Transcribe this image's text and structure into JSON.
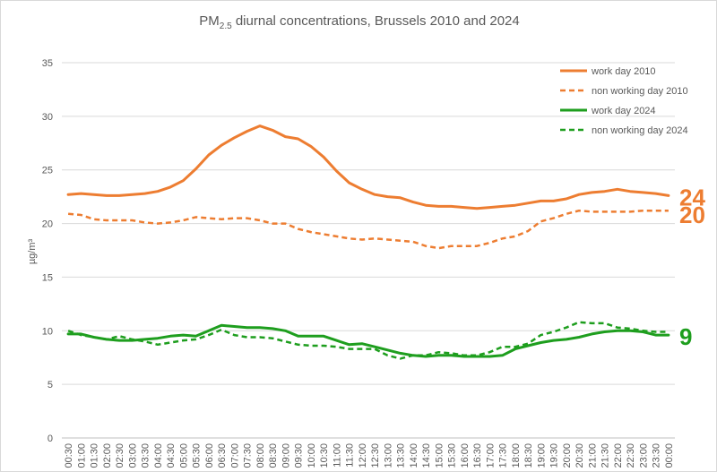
{
  "chart_data": {
    "type": "line",
    "title_main": "PM",
    "title_sub": "2.5",
    "title_rest": " diurnal concentrations, Brussels 2010 and 2024",
    "ylabel": "µg/m³",
    "ylim": [
      0,
      35
    ],
    "yticks": [
      0,
      5,
      10,
      15,
      20,
      25,
      30,
      35
    ],
    "grid": true,
    "legend_position": "top-right",
    "x": [
      "00:30",
      "01:00",
      "01:30",
      "02:00",
      "02:30",
      "03:00",
      "03:30",
      "04:00",
      "04:30",
      "05:00",
      "05:30",
      "06:00",
      "06:30",
      "07:00",
      "07:30",
      "08:00",
      "08:30",
      "09:00",
      "09:30",
      "10:00",
      "10:30",
      "11:00",
      "11:30",
      "12:00",
      "12:30",
      "13:00",
      "13:30",
      "14:00",
      "14:30",
      "15:00",
      "15:30",
      "16:00",
      "16:30",
      "17:00",
      "17:30",
      "18:00",
      "18:30",
      "19:00",
      "19:30",
      "20:00",
      "20:30",
      "21:00",
      "21:30",
      "22:00",
      "22:30",
      "23:00",
      "23:30",
      "00:00"
    ],
    "series": [
      {
        "name": "work day 2010",
        "color": "#ED7D31",
        "dash": false,
        "values": [
          22.7,
          22.8,
          22.7,
          22.6,
          22.6,
          22.7,
          22.8,
          23.0,
          23.4,
          24.0,
          25.1,
          26.4,
          27.3,
          28.0,
          28.6,
          29.1,
          28.7,
          28.1,
          27.9,
          27.2,
          26.2,
          24.9,
          23.8,
          23.2,
          22.7,
          22.5,
          22.4,
          22.0,
          21.7,
          21.6,
          21.6,
          21.5,
          21.4,
          21.5,
          21.6,
          21.7,
          21.9,
          22.1,
          22.1,
          22.3,
          22.7,
          22.9,
          23.0,
          23.2,
          23.0,
          22.9,
          22.8,
          22.6
        ]
      },
      {
        "name": "non working day 2010",
        "color": "#ED7D31",
        "dash": true,
        "values": [
          20.9,
          20.8,
          20.4,
          20.3,
          20.3,
          20.3,
          20.1,
          20.0,
          20.1,
          20.3,
          20.6,
          20.5,
          20.4,
          20.5,
          20.5,
          20.3,
          20.0,
          20.0,
          19.5,
          19.2,
          19.0,
          18.8,
          18.6,
          18.5,
          18.6,
          18.5,
          18.4,
          18.3,
          17.9,
          17.7,
          17.9,
          17.9,
          17.9,
          18.2,
          18.6,
          18.8,
          19.3,
          20.2,
          20.5,
          20.9,
          21.2,
          21.1,
          21.1,
          21.1,
          21.1,
          21.2,
          21.2,
          21.2
        ]
      },
      {
        "name": "work day 2024",
        "color": "#1E9E1E",
        "dash": false,
        "values": [
          9.7,
          9.7,
          9.4,
          9.2,
          9.1,
          9.1,
          9.2,
          9.3,
          9.5,
          9.6,
          9.5,
          10.0,
          10.5,
          10.4,
          10.3,
          10.3,
          10.2,
          10.0,
          9.5,
          9.5,
          9.5,
          9.1,
          8.7,
          8.8,
          8.5,
          8.2,
          7.9,
          7.7,
          7.6,
          7.7,
          7.7,
          7.6,
          7.6,
          7.6,
          7.7,
          8.3,
          8.6,
          8.9,
          9.1,
          9.2,
          9.4,
          9.7,
          9.9,
          10.0,
          10.0,
          9.9,
          9.6,
          9.6
        ]
      },
      {
        "name": "non working day 2024",
        "color": "#1E9E1E",
        "dash": true,
        "values": [
          10.0,
          9.6,
          9.4,
          9.2,
          9.5,
          9.2,
          9.0,
          8.7,
          8.9,
          9.1,
          9.2,
          9.6,
          10.1,
          9.6,
          9.4,
          9.4,
          9.3,
          9.0,
          8.7,
          8.6,
          8.6,
          8.5,
          8.3,
          8.3,
          8.3,
          7.7,
          7.4,
          7.7,
          7.7,
          8.0,
          7.9,
          7.7,
          7.7,
          8.0,
          8.5,
          8.5,
          8.8,
          9.6,
          9.9,
          10.3,
          10.8,
          10.7,
          10.7,
          10.3,
          10.2,
          10.0,
          9.9,
          9.9
        ]
      }
    ],
    "end_labels": [
      {
        "text": "24",
        "color": "#ED7D31"
      },
      {
        "text": "20",
        "color": "#ED7D31"
      },
      {
        "text": "9",
        "color": "#1E9E1E"
      }
    ]
  }
}
